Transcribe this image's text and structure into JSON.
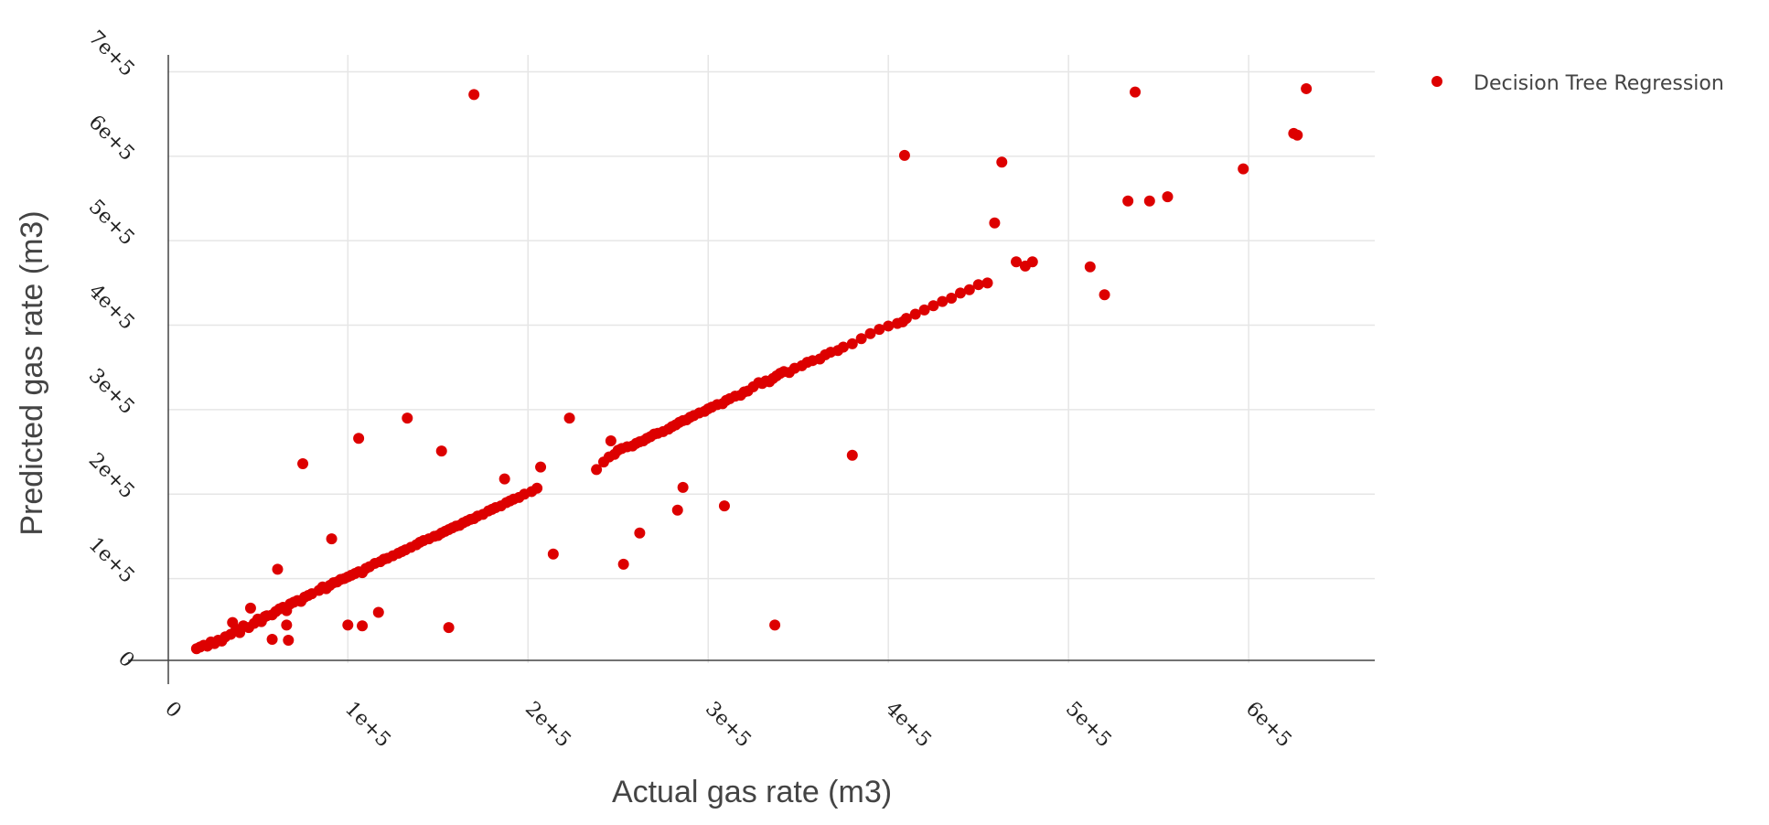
{
  "chart_data": {
    "type": "scatter",
    "xlabel": "Actual gas rate (m3)",
    "ylabel": "Predicted gas rate (m3)",
    "xlim": [
      -22000,
      670000
    ],
    "ylim": [
      -25000,
      720000
    ],
    "x_ticks": [
      {
        "value": 0,
        "label": "0"
      },
      {
        "value": 100000,
        "label": "1e+5"
      },
      {
        "value": 200000,
        "label": "2e+5"
      },
      {
        "value": 300000,
        "label": "3e+5"
      },
      {
        "value": 400000,
        "label": "4e+5"
      },
      {
        "value": 500000,
        "label": "5e+5"
      },
      {
        "value": 600000,
        "label": "6e+5"
      }
    ],
    "y_ticks": [
      {
        "value": 0,
        "label": "0"
      },
      {
        "value": 100000,
        "label": "1e+5"
      },
      {
        "value": 200000,
        "label": "2e+5"
      },
      {
        "value": 300000,
        "label": "3e+5"
      },
      {
        "value": 400000,
        "label": "4e+5"
      },
      {
        "value": 500000,
        "label": "5e+5"
      },
      {
        "value": 600000,
        "label": "6e+5"
      },
      {
        "value": 700000,
        "label": "7e+5"
      }
    ],
    "grid": true,
    "legend_position": "top-right",
    "series": [
      {
        "name": "Decision Tree Regression",
        "color": "#dd0000",
        "points": [
          [
            16000,
            17000
          ],
          [
            18000,
            19000
          ],
          [
            20000,
            21000
          ],
          [
            22000,
            20000
          ],
          [
            24000,
            25000
          ],
          [
            26000,
            23000
          ],
          [
            28000,
            27000
          ],
          [
            30000,
            26000
          ],
          [
            32000,
            31000
          ],
          [
            35000,
            34000
          ],
          [
            38000,
            40000
          ],
          [
            40000,
            36000
          ],
          [
            42000,
            44000
          ],
          [
            45000,
            42000
          ],
          [
            48000,
            47000
          ],
          [
            50000,
            52000
          ],
          [
            52000,
            49000
          ],
          [
            55000,
            56000
          ],
          [
            58000,
            57000
          ],
          [
            60000,
            61000
          ],
          [
            62000,
            64000
          ],
          [
            64000,
            66000
          ],
          [
            66000,
            62000
          ],
          [
            68000,
            70000
          ],
          [
            70000,
            72000
          ],
          [
            72000,
            74000
          ],
          [
            74000,
            73000
          ],
          [
            76000,
            78000
          ],
          [
            78000,
            80000
          ],
          [
            80000,
            82000
          ],
          [
            84000,
            86000
          ],
          [
            86000,
            90000
          ],
          [
            88000,
            88000
          ],
          [
            90000,
            92000
          ],
          [
            92000,
            95000
          ],
          [
            94000,
            96000
          ],
          [
            96000,
            99000
          ],
          [
            98000,
            100000
          ],
          [
            100000,
            102000
          ],
          [
            102000,
            104000
          ],
          [
            104000,
            106000
          ],
          [
            106000,
            108000
          ],
          [
            108000,
            107000
          ],
          [
            110000,
            112000
          ],
          [
            112000,
            114000
          ],
          [
            115000,
            118000
          ],
          [
            118000,
            120000
          ],
          [
            120000,
            123000
          ],
          [
            122000,
            124000
          ],
          [
            125000,
            127000
          ],
          [
            128000,
            130000
          ],
          [
            130000,
            132000
          ],
          [
            132000,
            134000
          ],
          [
            135000,
            137000
          ],
          [
            138000,
            140000
          ],
          [
            140000,
            143000
          ],
          [
            142000,
            145000
          ],
          [
            145000,
            147000
          ],
          [
            148000,
            150000
          ],
          [
            150000,
            151000
          ],
          [
            152000,
            154000
          ],
          [
            154000,
            156000
          ],
          [
            156000,
            158000
          ],
          [
            158000,
            160000
          ],
          [
            160000,
            162000
          ],
          [
            162000,
            163000
          ],
          [
            164000,
            166000
          ],
          [
            166000,
            168000
          ],
          [
            168000,
            170000
          ],
          [
            170000,
            171000
          ],
          [
            172000,
            174000
          ],
          [
            175000,
            176000
          ],
          [
            178000,
            180000
          ],
          [
            180000,
            182000
          ],
          [
            182000,
            184000
          ],
          [
            185000,
            186000
          ],
          [
            188000,
            190000
          ],
          [
            190000,
            192000
          ],
          [
            192000,
            194000
          ],
          [
            195000,
            196000
          ],
          [
            198000,
            200000
          ],
          [
            202000,
            203000
          ],
          [
            205000,
            207000
          ],
          [
            238000,
            229000
          ],
          [
            242000,
            238000
          ],
          [
            245000,
            244000
          ],
          [
            248000,
            247000
          ],
          [
            250000,
            252000
          ],
          [
            252000,
            254000
          ],
          [
            255000,
            256000
          ],
          [
            258000,
            257000
          ],
          [
            260000,
            260000
          ],
          [
            262000,
            262000
          ],
          [
            264000,
            263000
          ],
          [
            266000,
            266000
          ],
          [
            268000,
            268000
          ],
          [
            270000,
            271000
          ],
          [
            272000,
            272000
          ],
          [
            275000,
            274000
          ],
          [
            278000,
            277000
          ],
          [
            280000,
            280000
          ],
          [
            282000,
            282000
          ],
          [
            284000,
            285000
          ],
          [
            286000,
            287000
          ],
          [
            288000,
            288000
          ],
          [
            290000,
            291000
          ],
          [
            292000,
            293000
          ],
          [
            295000,
            296000
          ],
          [
            298000,
            298000
          ],
          [
            300000,
            301000
          ],
          [
            302000,
            303000
          ],
          [
            305000,
            306000
          ],
          [
            308000,
            307000
          ],
          [
            310000,
            311000
          ],
          [
            312000,
            313000
          ],
          [
            315000,
            316000
          ],
          [
            318000,
            317000
          ],
          [
            320000,
            321000
          ],
          [
            322000,
            322000
          ],
          [
            325000,
            327000
          ],
          [
            328000,
            332000
          ],
          [
            330000,
            331000
          ],
          [
            332000,
            334000
          ],
          [
            334000,
            333000
          ],
          [
            336000,
            337000
          ],
          [
            338000,
            340000
          ],
          [
            340000,
            343000
          ],
          [
            342000,
            345000
          ],
          [
            345000,
            344000
          ],
          [
            348000,
            349000
          ],
          [
            352000,
            352000
          ],
          [
            355000,
            356000
          ],
          [
            358000,
            358000
          ],
          [
            362000,
            360000
          ],
          [
            365000,
            365000
          ],
          [
            368000,
            368000
          ],
          [
            372000,
            370000
          ],
          [
            375000,
            374000
          ],
          [
            380000,
            378000
          ],
          [
            385000,
            384000
          ],
          [
            390000,
            390000
          ],
          [
            395000,
            395000
          ],
          [
            400000,
            399000
          ],
          [
            405000,
            402000
          ],
          [
            408000,
            404000
          ],
          [
            410000,
            408000
          ],
          [
            415000,
            413000
          ],
          [
            420000,
            418000
          ],
          [
            425000,
            423000
          ],
          [
            430000,
            428000
          ],
          [
            435000,
            432000
          ],
          [
            440000,
            438000
          ],
          [
            445000,
            442000
          ],
          [
            450000,
            448000
          ],
          [
            455000,
            450000
          ],
          [
            61000,
            111000
          ],
          [
            91000,
            147000
          ],
          [
            75000,
            236000
          ],
          [
            106000,
            266000
          ],
          [
            133000,
            290000
          ],
          [
            152000,
            251000
          ],
          [
            187000,
            218000
          ],
          [
            207000,
            232000
          ],
          [
            223000,
            290000
          ],
          [
            246000,
            263000
          ],
          [
            170000,
            673000
          ],
          [
            409000,
            601000
          ],
          [
            463000,
            593000
          ],
          [
            459000,
            521000
          ],
          [
            471000,
            475000
          ],
          [
            476000,
            470000
          ],
          [
            480000,
            475000
          ],
          [
            512000,
            469000
          ],
          [
            520000,
            436000
          ],
          [
            533000,
            547000
          ],
          [
            537000,
            676000
          ],
          [
            545000,
            547000
          ],
          [
            555000,
            552000
          ],
          [
            597000,
            585000
          ],
          [
            625000,
            627000
          ],
          [
            627000,
            625000
          ],
          [
            632000,
            680000
          ],
          [
            253000,
            117000
          ],
          [
            262000,
            154000
          ],
          [
            283000,
            181000
          ],
          [
            286000,
            208000
          ],
          [
            309000,
            186000
          ],
          [
            337000,
            45000
          ],
          [
            380000,
            246000
          ],
          [
            214000,
            129000
          ],
          [
            100000,
            45000
          ],
          [
            108000,
            44000
          ],
          [
            117000,
            60000
          ],
          [
            156000,
            42000
          ],
          [
            58000,
            28000
          ],
          [
            67000,
            27000
          ],
          [
            66000,
            45000
          ],
          [
            46000,
            65000
          ],
          [
            54000,
            55000
          ],
          [
            36000,
            48000
          ]
        ]
      }
    ]
  }
}
